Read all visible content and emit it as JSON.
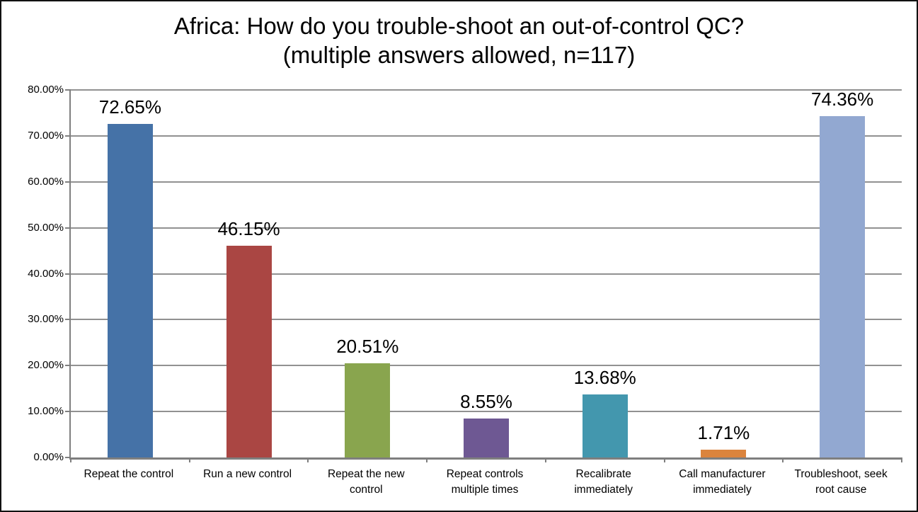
{
  "title": {
    "line1": "Africa: How do you trouble-shoot an out-of-control QC?",
    "line2": "(multiple answers allowed, n=117)"
  },
  "chart_data": {
    "type": "bar",
    "title": "Africa: How do you trouble-shoot an out-of-control QC? (multiple answers allowed, n=117)",
    "categories": [
      "Repeat the control",
      "Run a new control",
      "Repeat the new control",
      "Repeat controls multiple times",
      "Recalibrate immediately",
      "Call manufacturer immediately",
      "Troubleshoot, seek root cause"
    ],
    "values": [
      72.65,
      46.15,
      20.51,
      8.55,
      13.68,
      1.71,
      74.36
    ],
    "data_labels": [
      "72.65%",
      "46.15%",
      "20.51%",
      "8.55%",
      "13.68%",
      "1.71%",
      "74.36%"
    ],
    "bar_colors": [
      "#4572A7",
      "#AA4643",
      "#89A54E",
      "#6E5893",
      "#4397AE",
      "#DB843D",
      "#92A8D1"
    ],
    "ylim": [
      0,
      80
    ],
    "y_tick_step": 10,
    "y_tick_labels": [
      "0.00%",
      "10.00%",
      "20.00%",
      "30.00%",
      "40.00%",
      "50.00%",
      "60.00%",
      "70.00%",
      "80.00%"
    ],
    "xlabel": "",
    "ylabel": "",
    "grid": true,
    "legend": "none"
  },
  "colors": {
    "gridline": "#919191",
    "axis": "#7f7f7f",
    "text": "#000000",
    "background": "#ffffff",
    "frame_border": "#111111"
  }
}
